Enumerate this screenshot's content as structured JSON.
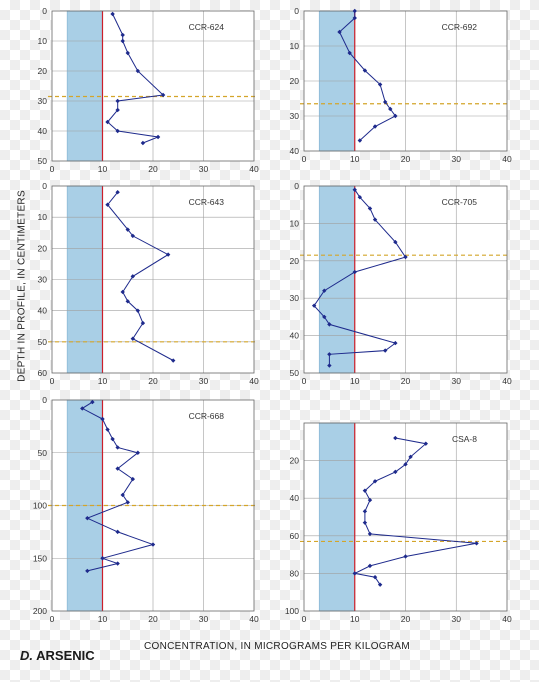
{
  "figure": {
    "y_axis_label": "DEPTH IN PROFILE, IN CENTIMETERS",
    "x_axis_label": "CONCENTRATION, IN MICROGRAMS PER KILOGRAM",
    "panel_letter": "D.",
    "panel_title": "ARSENIC"
  },
  "colors": {
    "band": "#a9cfe6",
    "band_edge": "#7fb0cf",
    "red_line": "#cc1f2a",
    "threshold": "#d4a52a",
    "series": "#1e2a8c",
    "grid": "#a0a0a0"
  },
  "chart_data": [
    {
      "type": "line",
      "title": "CCR-624",
      "xlim": [
        0,
        40
      ],
      "ylim": [
        50,
        0
      ],
      "xticks": [
        0,
        10,
        20,
        30,
        40
      ],
      "yticks": [
        0,
        10,
        20,
        30,
        40,
        50
      ],
      "band": [
        3,
        10
      ],
      "red_line": 10,
      "threshold_depth": 28.5,
      "series": [
        {
          "x": [
            12,
            14,
            14,
            15,
            17,
            22,
            13,
            13,
            11,
            13,
            21,
            18
          ],
          "y": [
            1,
            8,
            10,
            14,
            20,
            28,
            30,
            33,
            37,
            40,
            42,
            44
          ]
        }
      ]
    },
    {
      "type": "line",
      "title": "CCR-692",
      "xlim": [
        0,
        40
      ],
      "ylim": [
        40,
        0
      ],
      "xticks": [
        0,
        10,
        20,
        30,
        40
      ],
      "yticks": [
        0,
        10,
        20,
        30,
        40
      ],
      "band": [
        3,
        10
      ],
      "red_line": 10,
      "threshold_depth": 26.5,
      "series": [
        {
          "x": [
            10,
            10,
            7,
            9,
            12,
            15,
            16,
            17,
            18,
            14,
            11
          ],
          "y": [
            0,
            2,
            6,
            12,
            17,
            21,
            26,
            28,
            30,
            33,
            37
          ]
        }
      ]
    },
    {
      "type": "line",
      "title": "CCR-643",
      "xlim": [
        0,
        40
      ],
      "ylim": [
        60,
        0
      ],
      "xticks": [
        0,
        10,
        20,
        30,
        40
      ],
      "yticks": [
        0,
        10,
        20,
        30,
        40,
        50,
        60
      ],
      "band": [
        3,
        10
      ],
      "red_line": 10,
      "threshold_depth": 50,
      "series": [
        {
          "x": [
            13,
            11,
            15,
            16,
            23,
            16,
            14,
            15,
            17,
            18,
            16,
            24
          ],
          "y": [
            2,
            6,
            14,
            16,
            22,
            29,
            34,
            37,
            40,
            44,
            49,
            56
          ]
        }
      ]
    },
    {
      "type": "line",
      "title": "CCR-705",
      "xlim": [
        0,
        40
      ],
      "ylim": [
        50,
        0
      ],
      "xticks": [
        0,
        10,
        20,
        30,
        40
      ],
      "yticks": [
        0,
        10,
        20,
        30,
        40,
        50
      ],
      "band": [
        3,
        10
      ],
      "red_line": 10,
      "threshold_depth": 18.5,
      "series": [
        {
          "x": [
            10,
            11,
            13,
            14,
            18,
            20,
            10,
            4,
            2,
            4,
            5,
            18,
            16,
            5,
            5
          ],
          "y": [
            1,
            3,
            6,
            9,
            15,
            19,
            23,
            28,
            32,
            35,
            37,
            42,
            44,
            45,
            48
          ]
        }
      ]
    },
    {
      "type": "line",
      "title": "CCR-668",
      "xlim": [
        0,
        40
      ],
      "ylim": [
        200,
        0
      ],
      "xticks": [
        0,
        10,
        20,
        30,
        40
      ],
      "yticks": [
        0,
        50,
        100,
        150,
        200
      ],
      "band": [
        3,
        10
      ],
      "red_line": 10,
      "threshold_depth": 100,
      "series": [
        {
          "x": [
            8,
            6,
            10,
            11,
            12,
            13,
            17,
            13,
            16,
            14,
            15,
            7,
            13,
            20,
            10,
            13,
            7
          ],
          "y": [
            2,
            8,
            18,
            28,
            37,
            45,
            50,
            65,
            75,
            90,
            97,
            112,
            125,
            137,
            150,
            155,
            162
          ]
        }
      ]
    },
    {
      "type": "line",
      "title": "CSA-8",
      "xlim": [
        0,
        40
      ],
      "ylim": [
        100,
        0
      ],
      "xticks": [
        0,
        10,
        20,
        30,
        40
      ],
      "yticks": [
        20,
        40,
        60,
        80,
        100
      ],
      "band": [
        3,
        10
      ],
      "red_line": 10,
      "threshold_depth": 63,
      "series": [
        {
          "x": [
            18,
            24,
            21,
            20,
            18,
            14,
            12,
            13,
            12,
            12,
            13,
            34,
            20,
            13,
            10,
            14,
            15
          ],
          "y": [
            8,
            11,
            18,
            22,
            26,
            31,
            36,
            41,
            47,
            53,
            59,
            64,
            71,
            76,
            80,
            82,
            86
          ]
        }
      ]
    }
  ]
}
